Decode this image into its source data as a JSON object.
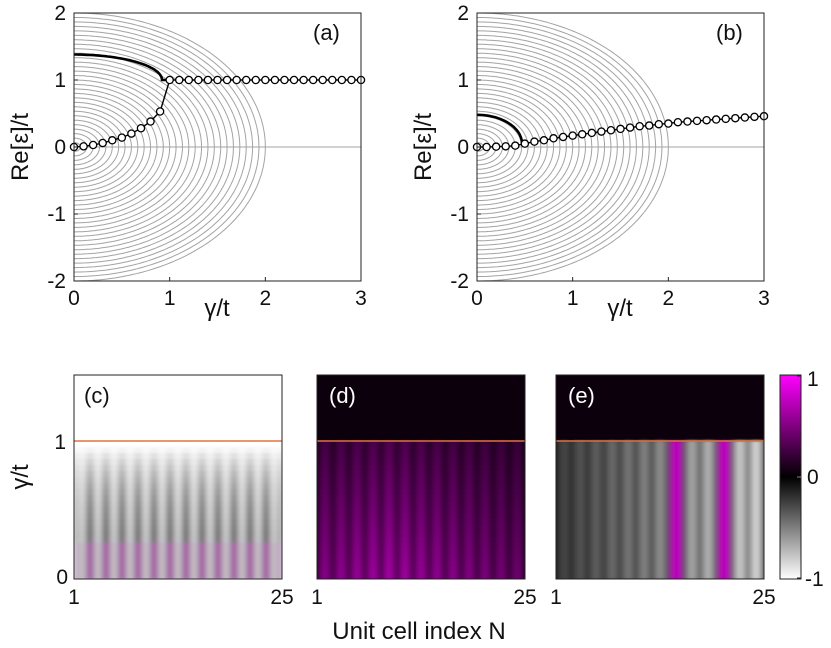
{
  "chart_data": [
    {
      "type": "line",
      "panel_label": "(a)",
      "xlabel": "γ/t",
      "ylabel": "Re[ε]/t",
      "xlim": [
        0,
        3
      ],
      "ylim": [
        -2,
        2
      ],
      "xticks": [
        "0",
        "1",
        "2",
        "3"
      ],
      "yticks": [
        "-2",
        "-1",
        "0",
        "1",
        "2"
      ],
      "gray_band_count": 30,
      "gray_band_closing_gamma": 2,
      "highlight_line": {
        "start": 1.38,
        "kink_gamma": 0.92,
        "kink_value": 1.0,
        "plateau": 1.0
      },
      "markers": {
        "x": [
          0,
          0.1,
          0.2,
          0.3,
          0.4,
          0.5,
          0.6,
          0.7,
          0.8,
          0.9,
          1.0,
          1.1,
          1.2,
          1.3,
          1.4,
          1.5,
          1.6,
          1.7,
          1.8,
          1.9,
          2.0,
          2.1,
          2.2,
          2.3,
          2.4,
          2.5,
          2.6,
          2.7,
          2.8,
          2.9,
          3.0
        ],
        "y": [
          0,
          0.01,
          0.03,
          0.06,
          0.1,
          0.14,
          0.2,
          0.28,
          0.38,
          0.53,
          1,
          1,
          1,
          1,
          1,
          1,
          1,
          1,
          1,
          1,
          1,
          1,
          1,
          1,
          1,
          1,
          1,
          1,
          1,
          1,
          1
        ]
      }
    },
    {
      "type": "line",
      "panel_label": "(b)",
      "xlabel": "γ/t",
      "ylabel": "Re[ε]/t",
      "xlim": [
        0,
        3
      ],
      "ylim": [
        -2,
        2
      ],
      "xticks": [
        "0",
        "1",
        "2",
        "3"
      ],
      "yticks": [
        "-2",
        "-1",
        "0",
        "1",
        "2"
      ],
      "gray_band_count": 30,
      "gray_band_closing_gamma": 2,
      "highlight_line": {
        "start": 0.48,
        "kink_gamma": 0.47,
        "kink_value": 0.05
      },
      "markers": {
        "x": [
          0,
          0.1,
          0.2,
          0.3,
          0.4,
          0.5,
          0.6,
          0.7,
          0.8,
          0.9,
          1.0,
          1.1,
          1.2,
          1.3,
          1.4,
          1.5,
          1.6,
          1.7,
          1.8,
          1.9,
          2.0,
          2.1,
          2.2,
          2.3,
          2.4,
          2.5,
          2.6,
          2.7,
          2.8,
          2.9,
          3.0
        ],
        "y": [
          0,
          0,
          0.005,
          0.01,
          0.02,
          0.05,
          0.08,
          0.1,
          0.13,
          0.15,
          0.17,
          0.19,
          0.21,
          0.23,
          0.25,
          0.27,
          0.29,
          0.31,
          0.32,
          0.34,
          0.35,
          0.37,
          0.38,
          0.39,
          0.4,
          0.41,
          0.42,
          0.43,
          0.44,
          0.45,
          0.46
        ]
      }
    },
    {
      "type": "heatmap",
      "panel_label": "(c)",
      "ylabel": "γ/t",
      "xticks": [
        "1",
        "25"
      ],
      "yticks": [
        "0",
        "1"
      ],
      "xlim": [
        1,
        25
      ],
      "ylim": [
        0,
        1.5
      ],
      "reference_line": 1.0,
      "stripe_count": 13
    },
    {
      "type": "heatmap",
      "panel_label": "(d)",
      "xticks": [
        "1",
        "25"
      ],
      "xlim": [
        1,
        25
      ],
      "ylim": [
        0,
        1.5
      ],
      "reference_line": 1.0,
      "stripe_count": 13
    },
    {
      "type": "heatmap",
      "panel_label": "(e)",
      "xticks": [
        "1",
        "25"
      ],
      "xlim": [
        1,
        25
      ],
      "ylim": [
        0,
        1.5
      ],
      "reference_line": 1.0,
      "stripe_count": 13
    }
  ],
  "shared_xlabel": "Unit cell index N",
  "colorbar": {
    "ticks": [
      "1",
      "0",
      "-1"
    ],
    "range": [
      -1,
      1
    ],
    "colors": [
      "#ffffff",
      "#000000",
      "#ff00ff"
    ]
  }
}
